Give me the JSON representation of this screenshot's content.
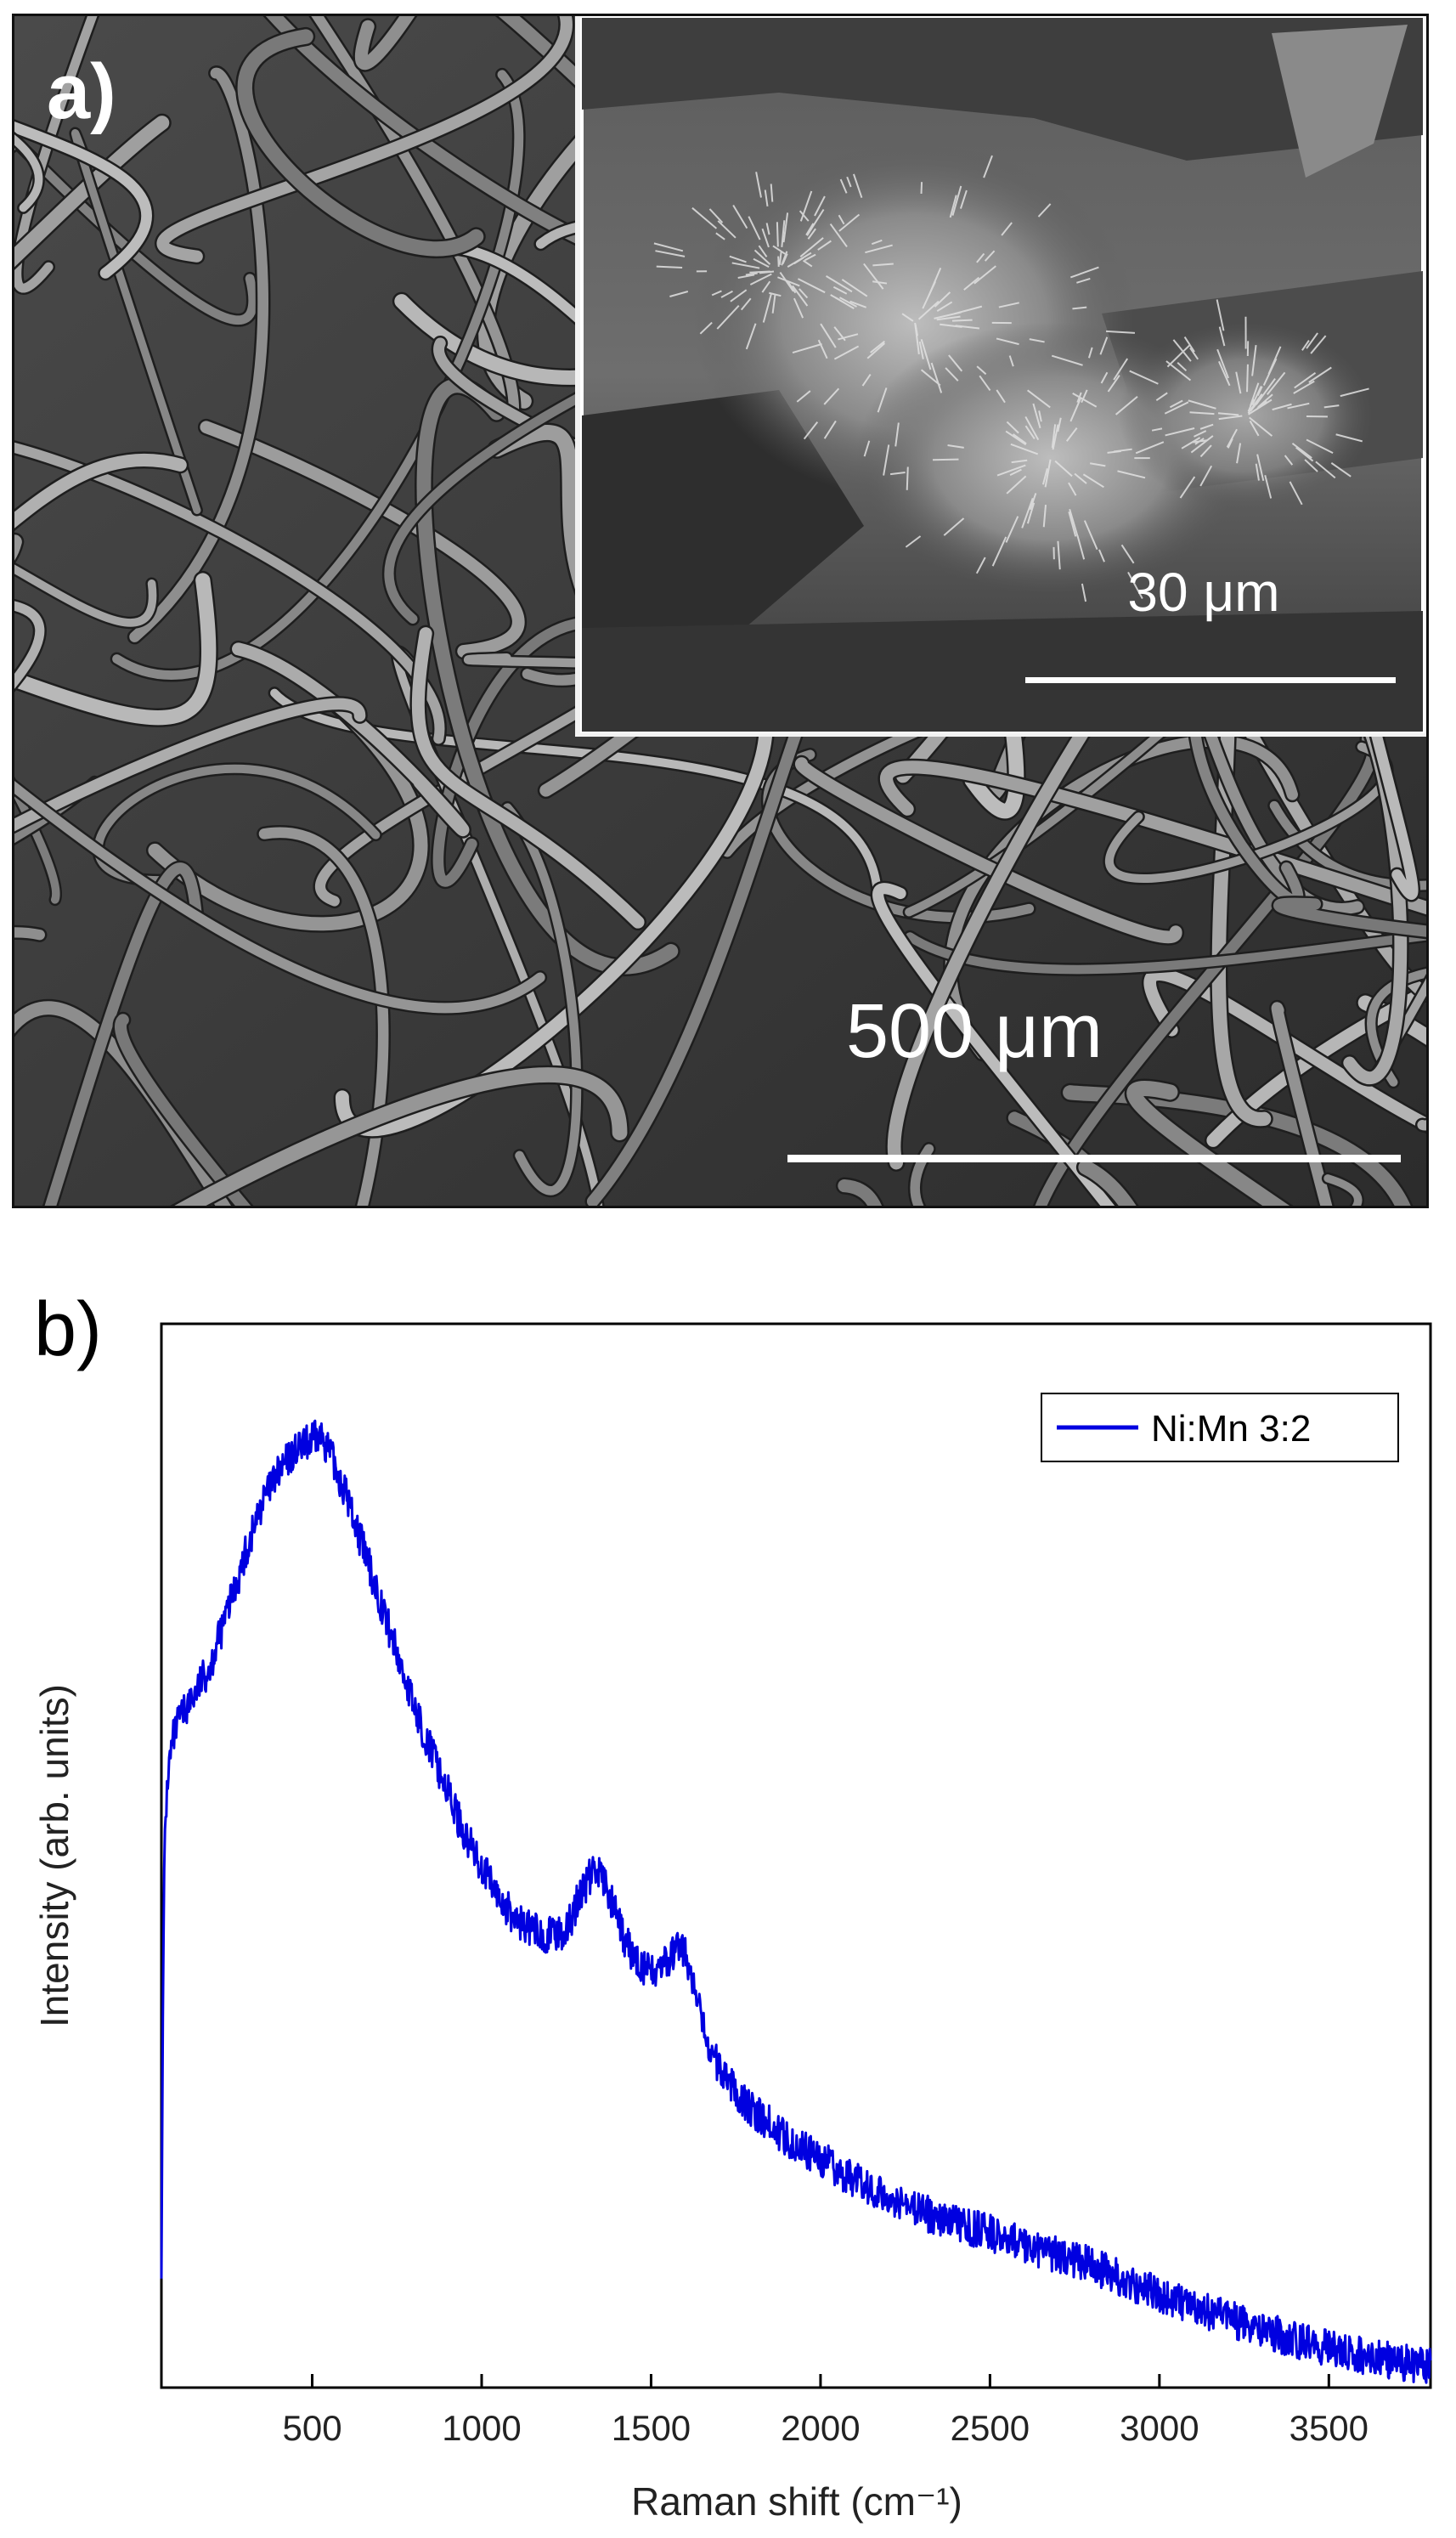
{
  "figure": {
    "panel_a": {
      "label": "a)",
      "scale_bar_main": "500 μm",
      "scale_bar_inset": "30 μm"
    },
    "panel_b": {
      "label": "b)"
    }
  },
  "colors": {
    "series": "#0000e0",
    "axis": "#000000",
    "sem_background": "#3a3a3a"
  },
  "chart_data": {
    "type": "line",
    "title": "",
    "xlabel": "Raman shift (cm⁻¹)",
    "ylabel": "Intensity (arb. units)",
    "xlim": [
      55,
      3800
    ],
    "ylim": [
      0,
      1
    ],
    "x_ticks": [
      "500",
      "1000",
      "1500",
      "2000",
      "2500",
      "3000",
      "3500"
    ],
    "y_ticks": [],
    "grid": false,
    "legend_position": "top-right",
    "series": [
      {
        "name": "Ni:Mn 3:2",
        "color": "#0000e0",
        "x": [
          55,
          60,
          65,
          75,
          90,
          110,
          150,
          200,
          250,
          300,
          350,
          400,
          450,
          500,
          530,
          550,
          600,
          650,
          700,
          750,
          800,
          850,
          900,
          950,
          1000,
          1050,
          1100,
          1150,
          1200,
          1250,
          1300,
          1340,
          1380,
          1420,
          1460,
          1500,
          1550,
          1580,
          1600,
          1630,
          1660,
          1700,
          1750,
          1800,
          1900,
          2000,
          2100,
          2200,
          2300,
          2400,
          2500,
          2600,
          2700,
          2800,
          2900,
          3000,
          3100,
          3200,
          3300,
          3400,
          3500,
          3600,
          3700,
          3800
        ],
        "values": [
          0.12,
          0.38,
          0.52,
          0.58,
          0.61,
          0.63,
          0.65,
          0.68,
          0.73,
          0.78,
          0.83,
          0.86,
          0.88,
          0.89,
          0.895,
          0.88,
          0.84,
          0.79,
          0.74,
          0.69,
          0.64,
          0.6,
          0.56,
          0.52,
          0.49,
          0.46,
          0.44,
          0.43,
          0.425,
          0.43,
          0.47,
          0.49,
          0.46,
          0.42,
          0.4,
          0.39,
          0.4,
          0.415,
          0.41,
          0.37,
          0.33,
          0.3,
          0.28,
          0.26,
          0.235,
          0.215,
          0.195,
          0.18,
          0.165,
          0.155,
          0.145,
          0.135,
          0.125,
          0.115,
          0.1,
          0.088,
          0.076,
          0.065,
          0.055,
          0.045,
          0.037,
          0.03,
          0.024,
          0.02
        ]
      }
    ]
  }
}
